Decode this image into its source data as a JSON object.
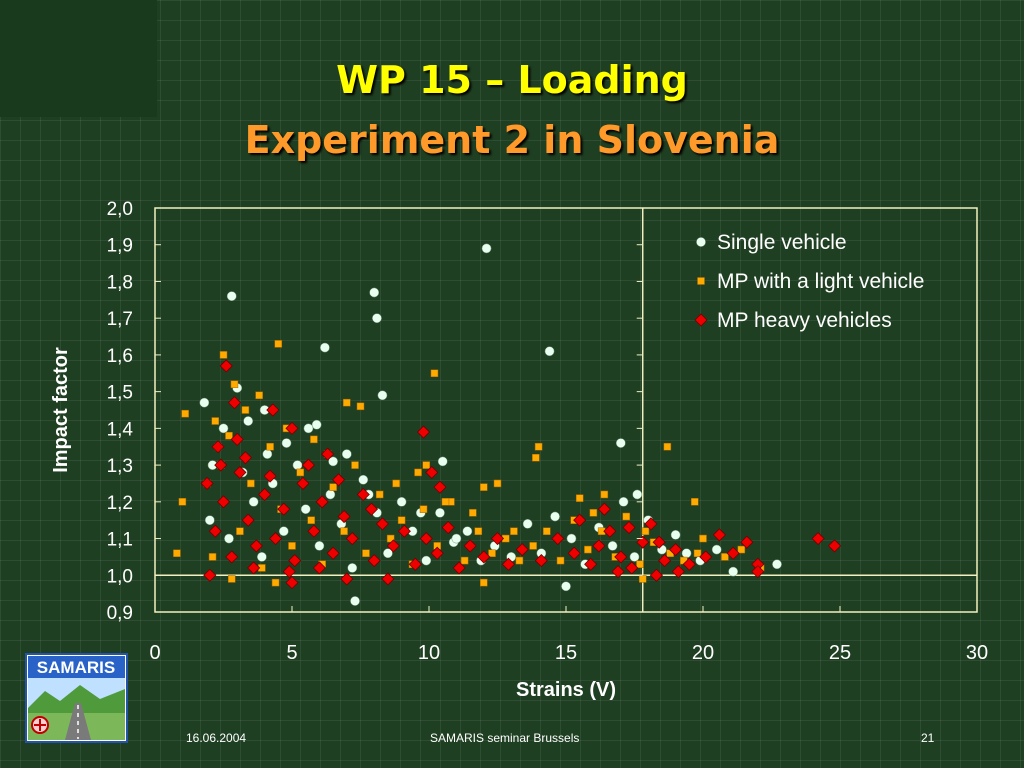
{
  "slide": {
    "title_line1": "WP 15 – Loading",
    "title_line2": "Experiment 2 in Slovenia",
    "footer_date": "16.06.2004",
    "footer_center": "SAMARIS seminar Brussels",
    "page_number": "21",
    "logo_text": "SAMARIS"
  },
  "colors": {
    "background": "#1f3f22",
    "title1": "#ffff00",
    "title2": "#ff9a2a",
    "plot_border": "#f0f0c0",
    "single": "#e8fff0",
    "light": "#ffaa00",
    "heavy": "#ee0000"
  },
  "chart_data": {
    "type": "scatter",
    "xlabel": "Strains (V)",
    "ylabel": "Impact factor",
    "xlim": [
      0,
      30
    ],
    "ylim": [
      0.9,
      2.0
    ],
    "xticks": [
      "0",
      "5",
      "10",
      "15",
      "20",
      "25",
      "30"
    ],
    "yticks": [
      "0,9",
      "1,0",
      "1,1",
      "1,2",
      "1,3",
      "1,4",
      "1,5",
      "1,6",
      "1,7",
      "1,8",
      "1,9",
      "2,0"
    ],
    "reference_lines": {
      "y": 1.0,
      "x": 17.8
    },
    "legend_position": "top-right",
    "series": [
      {
        "name": "Single vehicle",
        "marker": "circle",
        "points": [
          [
            12.1,
            1.89
          ],
          [
            2.8,
            1.76
          ],
          [
            8.0,
            1.77
          ],
          [
            8.1,
            1.7
          ],
          [
            6.2,
            1.62
          ],
          [
            14.4,
            1.61
          ],
          [
            8.3,
            1.49
          ],
          [
            3.0,
            1.51
          ],
          [
            1.8,
            1.47
          ],
          [
            4.0,
            1.45
          ],
          [
            5.9,
            1.41
          ],
          [
            7.0,
            1.33
          ],
          [
            2.5,
            1.4
          ],
          [
            4.8,
            1.36
          ],
          [
            10.5,
            1.31
          ],
          [
            17.0,
            1.36
          ],
          [
            17.6,
            1.22
          ],
          [
            7.3,
            0.93
          ],
          [
            15.0,
            0.97
          ],
          [
            22.7,
            1.03
          ],
          [
            21.1,
            1.01
          ],
          [
            19.4,
            1.06
          ],
          [
            2.3,
            1.35
          ],
          [
            3.2,
            1.28
          ],
          [
            3.6,
            1.2
          ],
          [
            2.0,
            1.15
          ],
          [
            2.7,
            1.1
          ],
          [
            3.9,
            1.05
          ],
          [
            4.3,
            1.25
          ],
          [
            4.7,
            1.12
          ],
          [
            5.2,
            1.3
          ],
          [
            5.5,
            1.18
          ],
          [
            6.0,
            1.08
          ],
          [
            6.4,
            1.22
          ],
          [
            6.8,
            1.14
          ],
          [
            7.2,
            1.02
          ],
          [
            7.6,
            1.26
          ],
          [
            8.1,
            1.17
          ],
          [
            8.5,
            1.06
          ],
          [
            9.0,
            1.2
          ],
          [
            9.4,
            1.12
          ],
          [
            9.9,
            1.04
          ],
          [
            10.4,
            1.17
          ],
          [
            10.9,
            1.09
          ],
          [
            11.4,
            1.12
          ],
          [
            11.9,
            1.04
          ],
          [
            12.4,
            1.08
          ],
          [
            13.0,
            1.05
          ],
          [
            13.6,
            1.14
          ],
          [
            14.1,
            1.06
          ],
          [
            14.6,
            1.16
          ],
          [
            15.2,
            1.1
          ],
          [
            15.7,
            1.03
          ],
          [
            16.2,
            1.13
          ],
          [
            16.7,
            1.08
          ],
          [
            17.1,
            1.2
          ],
          [
            17.5,
            1.05
          ],
          [
            18.0,
            1.15
          ],
          [
            18.5,
            1.07
          ],
          [
            19.0,
            1.11
          ],
          [
            19.9,
            1.04
          ],
          [
            20.5,
            1.07
          ],
          [
            2.1,
            1.3
          ],
          [
            3.4,
            1.42
          ],
          [
            4.1,
            1.33
          ],
          [
            5.6,
            1.4
          ],
          [
            6.5,
            1.31
          ],
          [
            7.8,
            1.22
          ],
          [
            9.7,
            1.17
          ],
          [
            11.0,
            1.1
          ]
        ]
      },
      {
        "name": "MP with a light vehicle",
        "marker": "square",
        "points": [
          [
            2.5,
            1.6
          ],
          [
            4.5,
            1.63
          ],
          [
            10.2,
            1.55
          ],
          [
            7.5,
            1.46
          ],
          [
            7.0,
            1.47
          ],
          [
            1.1,
            1.44
          ],
          [
            1.0,
            1.2
          ],
          [
            0.8,
            1.06
          ],
          [
            3.8,
            1.49
          ],
          [
            2.9,
            1.52
          ],
          [
            5.8,
            1.37
          ],
          [
            14.0,
            1.35
          ],
          [
            13.9,
            1.32
          ],
          [
            18.7,
            1.35
          ],
          [
            19.7,
            1.2
          ],
          [
            12.5,
            1.25
          ],
          [
            12.0,
            1.24
          ],
          [
            9.9,
            1.3
          ],
          [
            15.5,
            1.21
          ],
          [
            16.4,
            1.22
          ],
          [
            20.0,
            1.1
          ],
          [
            21.4,
            1.07
          ],
          [
            22.1,
            1.02
          ],
          [
            2.1,
            1.05
          ],
          [
            2.4,
            1.3
          ],
          [
            2.7,
            1.38
          ],
          [
            3.1,
            1.12
          ],
          [
            3.5,
            1.25
          ],
          [
            3.9,
            1.02
          ],
          [
            4.2,
            1.35
          ],
          [
            4.6,
            1.18
          ],
          [
            5.0,
            1.08
          ],
          [
            5.3,
            1.28
          ],
          [
            5.7,
            1.15
          ],
          [
            6.1,
            1.03
          ],
          [
            6.5,
            1.24
          ],
          [
            6.9,
            1.12
          ],
          [
            7.3,
            1.3
          ],
          [
            7.7,
            1.06
          ],
          [
            8.2,
            1.22
          ],
          [
            8.6,
            1.1
          ],
          [
            9.0,
            1.15
          ],
          [
            9.4,
            1.03
          ],
          [
            9.8,
            1.18
          ],
          [
            10.3,
            1.08
          ],
          [
            10.8,
            1.2
          ],
          [
            11.3,
            1.04
          ],
          [
            11.8,
            1.12
          ],
          [
            12.3,
            1.06
          ],
          [
            12.8,
            1.1
          ],
          [
            13.3,
            1.04
          ],
          [
            13.8,
            1.08
          ],
          [
            14.3,
            1.12
          ],
          [
            14.8,
            1.04
          ],
          [
            15.3,
            1.15
          ],
          [
            15.8,
            1.07
          ],
          [
            16.3,
            1.12
          ],
          [
            16.8,
            1.05
          ],
          [
            17.2,
            1.16
          ],
          [
            17.7,
            1.03
          ],
          [
            18.2,
            1.09
          ],
          [
            18.8,
            1.06
          ],
          [
            19.3,
            1.04
          ],
          [
            19.8,
            1.06
          ],
          [
            20.8,
            1.05
          ],
          [
            1.9,
            1.25
          ],
          [
            2.2,
            1.42
          ],
          [
            3.3,
            1.45
          ],
          [
            4.8,
            1.4
          ],
          [
            6.3,
            1.33
          ],
          [
            8.8,
            1.25
          ],
          [
            11.6,
            1.17
          ],
          [
            13.1,
            1.12
          ],
          [
            16.0,
            1.17
          ],
          [
            17.9,
            1.12
          ],
          [
            2.8,
            0.99
          ],
          [
            4.4,
            0.98
          ],
          [
            12.0,
            0.98
          ],
          [
            17.8,
            0.99
          ],
          [
            9.6,
            1.28
          ],
          [
            10.6,
            1.2
          ]
        ]
      },
      {
        "name": "MP heavy vehicles",
        "marker": "diamond",
        "points": [
          [
            2.6,
            1.57
          ],
          [
            9.8,
            1.39
          ],
          [
            2.9,
            1.47
          ],
          [
            4.3,
            1.45
          ],
          [
            5.0,
            1.4
          ],
          [
            6.3,
            1.33
          ],
          [
            3.0,
            1.37
          ],
          [
            2.4,
            1.3
          ],
          [
            1.9,
            1.25
          ],
          [
            2.0,
            1.0
          ],
          [
            24.2,
            1.1
          ],
          [
            24.8,
            1.08
          ],
          [
            21.6,
            1.09
          ],
          [
            22.0,
            1.03
          ],
          [
            22.0,
            1.01
          ],
          [
            21.1,
            1.06
          ],
          [
            20.6,
            1.11
          ],
          [
            20.1,
            1.05
          ],
          [
            19.1,
            1.01
          ],
          [
            18.4,
            1.09
          ],
          [
            16.4,
            1.18
          ],
          [
            15.5,
            1.15
          ],
          [
            7.0,
            0.99
          ],
          [
            8.5,
            0.99
          ],
          [
            5.0,
            0.98
          ],
          [
            10.1,
            1.28
          ],
          [
            10.4,
            1.24
          ],
          [
            2.2,
            1.12
          ],
          [
            2.5,
            1.2
          ],
          [
            2.8,
            1.05
          ],
          [
            3.1,
            1.28
          ],
          [
            3.4,
            1.15
          ],
          [
            3.7,
            1.08
          ],
          [
            4.0,
            1.22
          ],
          [
            4.4,
            1.1
          ],
          [
            4.7,
            1.18
          ],
          [
            5.1,
            1.04
          ],
          [
            5.4,
            1.25
          ],
          [
            5.8,
            1.12
          ],
          [
            6.1,
            1.2
          ],
          [
            6.5,
            1.06
          ],
          [
            6.9,
            1.16
          ],
          [
            7.2,
            1.1
          ],
          [
            7.6,
            1.22
          ],
          [
            8.0,
            1.04
          ],
          [
            8.3,
            1.14
          ],
          [
            8.7,
            1.08
          ],
          [
            9.1,
            1.12
          ],
          [
            9.5,
            1.03
          ],
          [
            9.9,
            1.1
          ],
          [
            10.3,
            1.06
          ],
          [
            10.7,
            1.13
          ],
          [
            11.1,
            1.02
          ],
          [
            11.5,
            1.08
          ],
          [
            12.0,
            1.05
          ],
          [
            12.5,
            1.1
          ],
          [
            12.9,
            1.03
          ],
          [
            13.4,
            1.07
          ],
          [
            14.1,
            1.04
          ],
          [
            14.7,
            1.1
          ],
          [
            15.3,
            1.06
          ],
          [
            15.9,
            1.03
          ],
          [
            16.2,
            1.08
          ],
          [
            16.6,
            1.12
          ],
          [
            17.0,
            1.05
          ],
          [
            17.4,
            1.02
          ],
          [
            17.8,
            1.09
          ],
          [
            18.1,
            1.14
          ],
          [
            18.6,
            1.04
          ],
          [
            19.0,
            1.07
          ],
          [
            19.5,
            1.03
          ],
          [
            3.3,
            1.32
          ],
          [
            4.2,
            1.27
          ],
          [
            5.6,
            1.3
          ],
          [
            6.7,
            1.26
          ],
          [
            7.9,
            1.18
          ],
          [
            2.3,
            1.35
          ],
          [
            3.6,
            1.02
          ],
          [
            4.9,
            1.01
          ],
          [
            6.0,
            1.02
          ],
          [
            17.3,
            1.13
          ],
          [
            18.3,
            1.0
          ],
          [
            16.9,
            1.01
          ]
        ]
      }
    ]
  }
}
